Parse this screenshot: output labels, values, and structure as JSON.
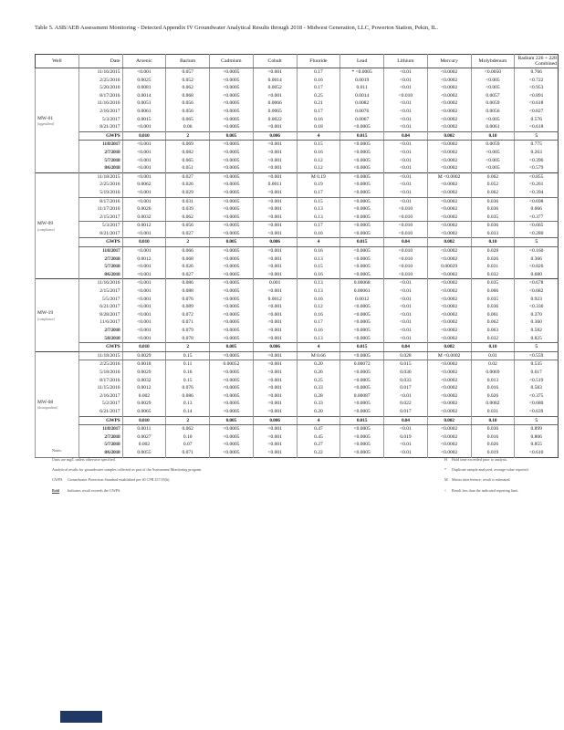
{
  "title": "Table 5. ASB/AEB Assessment Monitoring - Detected Appendix IV Groundwater Analytical Results through 2018 - Midwest Generation, LLC, Powerton Station, Pekin, IL.",
  "colors": {
    "footer_block": "#1f3864"
  },
  "table": {
    "headers": [
      "Well",
      "Date",
      "Arsenic",
      "Barium",
      "Cadmium",
      "Cobalt",
      "Fluoride",
      "Lead",
      "Lithium",
      "Mercury",
      "Molybdenum",
      "Radium 226 + 228\nCombined"
    ],
    "gwps": {
      "label": "GWPS",
      "values": [
        "0.010",
        "2",
        "0.005",
        "0.006",
        "4",
        "0.015",
        "0.04",
        "0.002",
        "0.10",
        "5"
      ]
    },
    "wells": [
      {
        "name": "MW-01",
        "subtitle": "(upgradient)",
        "gwps_after_row": 8,
        "hlines": [],
        "blur_rows": [
          8,
          9,
          10,
          11
        ],
        "rows": [
          {
            "date": "11/16/2015",
            "values": [
              "<0.001",
              "0.057",
              "<0.0005",
              "<0.001",
              "0.17",
              "* <0.0005",
              "<0.01",
              "<0.0002",
              "<0.0050",
              "0.766"
            ]
          },
          {
            "date": "2/25/2016",
            "values": [
              "0.0025",
              "0.052",
              "<0.0005",
              "0.0014",
              "0.16",
              "0.0019",
              "<0.01",
              "<0.0002",
              "<0.005",
              "<0.722"
            ]
          },
          {
            "date": "5/20/2016",
            "values": [
              "0.0081",
              "0.062",
              "<0.0005",
              "0.0052",
              "0.17",
              "0.011",
              "<0.01",
              "<0.0002",
              "<0.005",
              "<0.953"
            ]
          },
          {
            "date": "8/17/2016",
            "values": [
              "0.0014",
              "0.068",
              "<0.0005",
              "<0.001",
              "0.25",
              "0.0014",
              "<0.010",
              "<0.0002",
              "0.0057",
              "<0.891"
            ]
          },
          {
            "date": "11/16/2016",
            "values": [
              "0.0051",
              "0.056",
              "<0.0005",
              "0.0066",
              "0.21",
              "0.0082",
              "<0.01",
              "<0.0002",
              "0.0059",
              "<0.618"
            ]
          },
          {
            "date": "2/16/2017",
            "values": [
              "0.0061",
              "0.056",
              "<0.0005",
              "0.0065",
              "0.17",
              "0.0076",
              "<0.01",
              "<0.0002",
              "0.0056",
              "<0.827"
            ]
          },
          {
            "date": "5/3/2017",
            "values": [
              "0.0015",
              "0.065",
              "<0.0005",
              "0.0022",
              "0.16",
              "0.0067",
              "<0.01",
              "<0.0002",
              "<0.005",
              "0.576"
            ]
          },
          {
            "date": "8/21/2017",
            "values": [
              "<0.001",
              "0.06",
              "<0.0005",
              "<0.001",
              "0.18",
              "<0.0005",
              "<0.01",
              "<0.0002",
              "0.0061",
              "<0.618"
            ]
          },
          {
            "date": "11/8/2017",
            "values": [
              "<0.001",
              "0.069",
              "<0.0005",
              "<0.001",
              "0.15",
              "<0.0005",
              "<0.01",
              "<0.0002",
              "0.0059",
              "0.775"
            ]
          },
          {
            "date": "2/7/2018",
            "values": [
              "<0.001",
              "0.082",
              "<0.0005",
              "<0.001",
              "0.16",
              "<0.0005",
              "<0.01",
              "<0.0002",
              "<0.005",
              "0.263"
            ]
          },
          {
            "date": "5/7/2018",
            "values": [
              "<0.001",
              "0.065",
              "<0.0005",
              "<0.001",
              "0.12",
              "<0.0005",
              "<0.01",
              "<0.0002",
              "<0.005",
              "<0.396"
            ]
          },
          {
            "date": "8/6/2018",
            "values": [
              "<0.001",
              "0.051",
              "<0.0005",
              "<0.001",
              "0.12",
              "<0.0005",
              "<0.01",
              "<0.0002",
              "<0.005",
              "<0.579"
            ]
          }
        ]
      },
      {
        "name": "MW-09",
        "subtitle": "(compliance)",
        "gwps_after_row": 8,
        "hlines": [
          2,
          5
        ],
        "blur_rows": [
          8,
          9,
          10,
          11
        ],
        "rows": [
          {
            "date": "11/18/2015",
            "values": [
              "<0.001",
              "0.027",
              "<0.0005",
              "<0.001",
              "M 0.19",
              "<0.0005",
              "<0.01",
              "M <0.0002",
              "0.062",
              "<0.855"
            ]
          },
          {
            "date": "2/25/2016",
            "values": [
              "0.0062",
              "0.026",
              "<0.0005",
              "0.0011",
              "0.19",
              "<0.0005",
              "<0.01",
              "<0.0002",
              "0.052",
              "<0.261"
            ]
          },
          {
            "date": "5/19/2016",
            "values": [
              "<0.001",
              "0.029",
              "<0.0005",
              "<0.001",
              "0.17",
              "<0.0005",
              "<0.01",
              "<0.0002",
              "0.062",
              "<0.394"
            ]
          },
          {
            "date": "8/17/2016",
            "values": [
              "<0.001",
              "0.031",
              "<0.0005",
              "<0.001",
              "0.15",
              "<0.0005",
              "<0.01",
              "<0.0002",
              "0.036",
              "<0.698"
            ]
          },
          {
            "date": "11/17/2016",
            "values": [
              "0.0026",
              "0.039",
              "<0.0005",
              "<0.001",
              "0.13",
              "<0.0005",
              "<0.010",
              "<0.0002",
              "0.036",
              "0.666"
            ]
          },
          {
            "date": "2/15/2017",
            "values": [
              "0.0032",
              "0.062",
              "<0.0005",
              "<0.001",
              "0.13",
              "<0.0005",
              "<0.010",
              "<0.0002",
              "0.035",
              "<0.377"
            ]
          },
          {
            "date": "5/3/2017",
            "values": [
              "0.0012",
              "0.056",
              "<0.0005",
              "<0.001",
              "0.17",
              "<0.0005",
              "<0.010",
              "<0.0002",
              "0.036",
              "<0.665"
            ]
          },
          {
            "date": "8/21/2017",
            "values": [
              "<0.001",
              "0.027",
              "<0.0005",
              "<0.001",
              "0.16",
              "<0.0005",
              "<0.010",
              "<0.0002",
              "0.033",
              "<0.280"
            ]
          },
          {
            "date": "11/8/2017",
            "values": [
              "<0.001",
              "0.066",
              "<0.0005",
              "<0.001",
              "0.16",
              "<0.0005",
              "<0.010",
              "<0.0002",
              "0.028",
              "<0.160"
            ]
          },
          {
            "date": "2/7/2018",
            "values": [
              "0.0012",
              "0.068",
              "<0.0005",
              "<0.001",
              "0.13",
              "<0.0005",
              "<0.010",
              "<0.0002",
              "0.026",
              "0.366"
            ]
          },
          {
            "date": "5/7/2018",
            "values": [
              "<0.001",
              "0.026",
              "<0.0005",
              "<0.001",
              "0.15",
              "<0.0005",
              "<0.010",
              "0.00029",
              "0.031",
              "<0.826"
            ]
          },
          {
            "date": "8/6/2018",
            "values": [
              "<0.001",
              "0.027",
              "<0.0005",
              "<0.001",
              "0.16",
              "<0.0005",
              "<0.010",
              "<0.0002",
              "0.032",
              "0.680"
            ]
          }
        ]
      },
      {
        "name": "MW-19",
        "subtitle": "(compliance)",
        "gwps_after_row": 8,
        "hlines": [],
        "blur_rows": [
          6,
          7
        ],
        "rows": [
          {
            "date": "11/16/2016",
            "values": [
              "<0.001",
              "0.086",
              "<0.0005",
              "0.001",
              "0.13",
              "0.00068",
              "<0.01",
              "<0.0002",
              "0.035",
              "<0.678"
            ]
          },
          {
            "date": "2/15/2017",
            "values": [
              "<0.001",
              "0.088",
              "<0.0005",
              "<0.001",
              "0.13",
              "0.00061",
              "<0.01",
              "<0.0002",
              "0.066",
              "<0.682"
            ]
          },
          {
            "date": "5/5/2017",
            "values": [
              "<0.001",
              "0.076",
              "<0.0005",
              "0.0012",
              "0.16",
              "0.0012",
              "<0.01",
              "<0.0002",
              "0.035",
              "0.923"
            ]
          },
          {
            "date": "6/21/2017",
            "values": [
              "<0.001",
              "0.089",
              "<0.0005",
              "<0.001",
              "0.12",
              "<0.0005",
              "<0.01",
              "<0.0002",
              "0.036",
              "<0.336"
            ]
          },
          {
            "date": "8/28/2017",
            "values": [
              "<0.001",
              "0.072",
              "<0.0005",
              "<0.001",
              "0.16",
              "<0.0005",
              "<0.01",
              "<0.0002",
              "0.061",
              "0.370"
            ]
          },
          {
            "date": "11/6/2017",
            "values": [
              "<0.001",
              "0.071",
              "<0.0005",
              "<0.001",
              "0.17",
              "<0.0005",
              "<0.01",
              "<0.0002",
              "0.062",
              "0.360"
            ]
          },
          {
            "date": "2/7/2018",
            "values": [
              "<0.001",
              "0.079",
              "<0.0005",
              "<0.001",
              "0.16",
              "<0.0005",
              "<0.01",
              "<0.0002",
              "0.063",
              "0.582"
            ]
          },
          {
            "date": "5/8/2018",
            "values": [
              "<0.001",
              "0.078",
              "<0.0005",
              "<0.001",
              "0.13",
              "<0.0005",
              "<0.01",
              "<0.0002",
              "0.032",
              "0.825"
            ]
          }
        ]
      },
      {
        "name": "MW-08",
        "subtitle": "(downgradient)",
        "gwps_after_row": 8,
        "hlines": [
          0
        ],
        "blur_rows": [
          8,
          9,
          10,
          11
        ],
        "rows": [
          {
            "date": "11/18/2015",
            "values": [
              "0.0029",
              "0.15",
              "<0.0005",
              "<0.001",
              "M 0.66",
              "<0.0005",
              "0.028",
              "M <0.0002",
              "0.01",
              "<0.559"
            ]
          },
          {
            "date": "2/25/2016",
            "values": [
              "0.0018",
              "0.11",
              "0.00052",
              "<0.001",
              "0.20",
              "0.00072",
              "0.015",
              "<0.0002",
              "0.02",
              "0.535"
            ]
          },
          {
            "date": "5/18/2016",
            "values": [
              "0.0029",
              "0.16",
              "<0.0005",
              "<0.001",
              "0.26",
              "<0.0005",
              "0.036",
              "<0.0002",
              "0.0069",
              "0.617"
            ]
          },
          {
            "date": "8/17/2016",
            "values": [
              "0.0032",
              "0.15",
              "<0.0005",
              "<0.001",
              "0.25",
              "<0.0005",
              "0.033",
              "<0.0002",
              "0.013",
              "<0.519"
            ]
          },
          {
            "date": "11/15/2016",
            "values": [
              "0.0012",
              "0.076",
              "<0.0005",
              "<0.001",
              "0.33",
              "<0.0005",
              "0.017",
              "<0.0002",
              "0.016",
              "0.583"
            ]
          },
          {
            "date": "2/16/2017",
            "values": [
              "0.002",
              "0.086",
              "<0.0005",
              "<0.001",
              "0.28",
              "0.00087",
              "<0.01",
              "<0.0002",
              "0.026",
              "<0.375"
            ]
          },
          {
            "date": "5/2/2017",
            "values": [
              "0.0029",
              "0.13",
              "<0.0005",
              "<0.001",
              "0.33",
              "<0.0005",
              "0.022",
              "<0.0002",
              "0.0082",
              "<0.680"
            ]
          },
          {
            "date": "6/21/2017",
            "values": [
              "0.0065",
              "0.14",
              "<0.0005",
              "<0.001",
              "0.20",
              "<0.0005",
              "0.017",
              "<0.0002",
              "0.031",
              "<0.639"
            ]
          },
          {
            "date": "11/8/2017",
            "values": [
              "0.0011",
              "0.062",
              "<0.0005",
              "<0.001",
              "0.47",
              "<0.0005",
              "<0.01",
              "<0.0002",
              "0.036",
              "0.899"
            ]
          },
          {
            "date": "2/7/2018",
            "values": [
              "0.0027",
              "0.10",
              "<0.0005",
              "<0.001",
              "0.45",
              "<0.0005",
              "0.019",
              "<0.0002",
              "0.016",
              "0.806"
            ]
          },
          {
            "date": "5/7/2018",
            "values": [
              "0.002",
              "0.07",
              "<0.0005",
              "<0.001",
              "0.27",
              "<0.0005",
              "<0.01",
              "<0.0002",
              "0.026",
              "0.855"
            ]
          },
          {
            "date": "8/6/2018",
            "values": [
              "0.0055",
              "0.071",
              "<0.0005",
              "<0.001",
              "0.22",
              "<0.0005",
              "<0.01",
              "<0.0002",
              "0.019",
              "<0.610"
            ]
          }
        ]
      }
    ]
  },
  "notes": {
    "heading": "Notes:",
    "left": [
      {
        "term": "",
        "text": "Units are mg/L unless otherwise specified."
      },
      {
        "term": "",
        "text": "Analytical results for groundwater samples collected as part of the Assessment Monitoring program."
      },
      {
        "term": "GWPS",
        "text": "Groundwater Protection Standard established per 40 CFR 257.95(h)."
      },
      {
        "term": "Bold",
        "text": "Indicates result exceeds the GWPS.",
        "bold_term": true
      }
    ],
    "right": [
      {
        "term": "H",
        "text": "Hold time exceeded prior to analysis."
      },
      {
        "term": "*",
        "text": "Duplicate sample analyzed; average value reported."
      },
      {
        "term": "M",
        "text": "Matrix interference; result is estimated."
      },
      {
        "term": "<",
        "text": "Result less than the indicated reporting limit."
      }
    ]
  }
}
